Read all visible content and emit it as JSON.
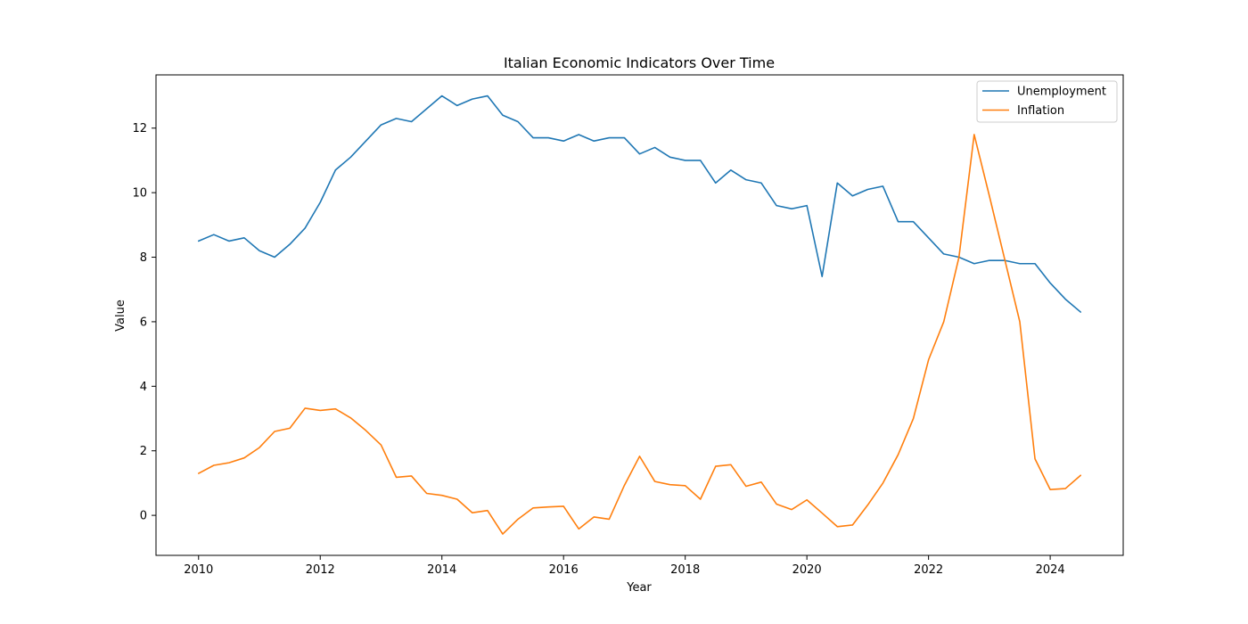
{
  "chart_data": {
    "type": "line",
    "title": "Italian Economic Indicators Over Time",
    "xlabel": "Year",
    "ylabel": "Value",
    "xlim": [
      2009.3,
      2025.2
    ],
    "ylim": [
      -1.24,
      13.65
    ],
    "xticks": [
      2010,
      2012,
      2014,
      2016,
      2018,
      2020,
      2022,
      2024
    ],
    "xtick_labels": [
      "2010",
      "2012",
      "2014",
      "2016",
      "2018",
      "2020",
      "2022",
      "2024"
    ],
    "yticks": [
      0,
      2,
      4,
      6,
      8,
      10,
      12
    ],
    "ytick_labels": [
      "0",
      "2",
      "4",
      "6",
      "8",
      "10",
      "12"
    ],
    "grid": false,
    "legend_position": "top-right",
    "x": [
      2010.0,
      2010.25,
      2010.5,
      2010.75,
      2011.0,
      2011.25,
      2011.5,
      2011.75,
      2012.0,
      2012.25,
      2012.5,
      2012.75,
      2013.0,
      2013.25,
      2013.5,
      2013.75,
      2014.0,
      2014.25,
      2014.5,
      2014.75,
      2015.0,
      2015.25,
      2015.5,
      2015.75,
      2016.0,
      2016.25,
      2016.5,
      2016.75,
      2017.0,
      2017.25,
      2017.5,
      2017.75,
      2018.0,
      2018.25,
      2018.5,
      2018.75,
      2019.0,
      2019.25,
      2019.5,
      2019.75,
      2020.0,
      2020.25,
      2020.5,
      2020.75,
      2021.0,
      2021.25,
      2021.5,
      2021.75,
      2022.0,
      2022.25,
      2022.5,
      2022.75,
      2023.0,
      2023.25,
      2023.5,
      2023.75,
      2024.0,
      2024.25,
      2024.5
    ],
    "series": [
      {
        "name": "Unemployment",
        "color": "#1f77b4",
        "values": [
          8.5,
          8.7,
          8.5,
          8.6,
          8.2,
          8.0,
          8.4,
          8.9,
          9.7,
          10.7,
          11.1,
          11.6,
          12.1,
          12.3,
          12.2,
          12.6,
          13.0,
          12.7,
          12.9,
          13.0,
          12.4,
          12.2,
          11.7,
          11.7,
          11.6,
          11.8,
          11.6,
          11.7,
          11.7,
          11.2,
          11.4,
          11.1,
          11.0,
          11.0,
          10.3,
          10.7,
          10.4,
          10.3,
          9.6,
          9.5,
          9.6,
          7.4,
          10.3,
          9.9,
          10.1,
          10.2,
          9.1,
          9.1,
          8.6,
          8.1,
          8.0,
          7.8,
          7.9,
          7.9,
          7.8,
          7.8,
          7.2,
          6.7,
          6.3
        ]
      },
      {
        "name": "Inflation",
        "color": "#ff7f0e",
        "values": [
          1.3,
          1.55,
          1.63,
          1.78,
          2.1,
          2.6,
          2.7,
          3.32,
          3.25,
          3.3,
          3.02,
          2.63,
          2.18,
          1.18,
          1.22,
          0.68,
          0.62,
          0.5,
          0.08,
          0.15,
          -0.58,
          -0.12,
          0.23,
          0.26,
          0.28,
          -0.42,
          -0.05,
          -0.12,
          0.93,
          1.83,
          1.05,
          0.95,
          0.92,
          0.5,
          1.52,
          1.57,
          0.9,
          1.03,
          0.35,
          0.18,
          0.48,
          0.07,
          -0.35,
          -0.3,
          0.32,
          1.0,
          1.88,
          3.0,
          4.82,
          6.0,
          8.0,
          11.8,
          9.9,
          7.95,
          6.0,
          1.75,
          0.8,
          0.83,
          1.24
        ]
      }
    ]
  }
}
